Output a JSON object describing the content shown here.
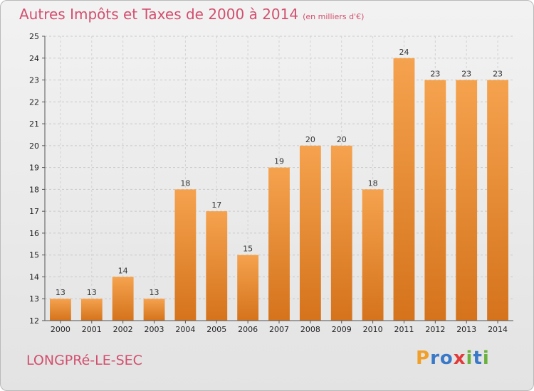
{
  "header": {
    "title": "Autres Impôts et Taxes de 2000 à 2014",
    "unit": "(en milliers d'€)"
  },
  "footer": {
    "commune": "LONGPRé-LE-SEC",
    "logo_letters": [
      "P",
      "r",
      "o",
      "x",
      "i",
      "t",
      "i"
    ],
    "logo_colors": [
      "#f0a02a",
      "#3a78c8",
      "#3a78c8",
      "#e23a3a",
      "#6ab23e",
      "#3a78c8",
      "#6ab23e"
    ]
  },
  "chart_data": {
    "type": "bar",
    "categories": [
      "2000",
      "2001",
      "2002",
      "2003",
      "2004",
      "2005",
      "2006",
      "2007",
      "2008",
      "2009",
      "2010",
      "2011",
      "2012",
      "2013",
      "2014"
    ],
    "values": [
      13,
      13,
      14,
      13,
      18,
      17,
      15,
      19,
      20,
      20,
      18,
      24,
      23,
      23,
      23
    ],
    "title": "Autres Impôts et Taxes de 2000 à 2014",
    "ylim": [
      12,
      25
    ],
    "yticks": [
      12,
      13,
      14,
      15,
      16,
      17,
      18,
      19,
      20,
      21,
      22,
      23,
      24,
      25
    ],
    "grid": true,
    "bar_color": "#f08c28"
  }
}
